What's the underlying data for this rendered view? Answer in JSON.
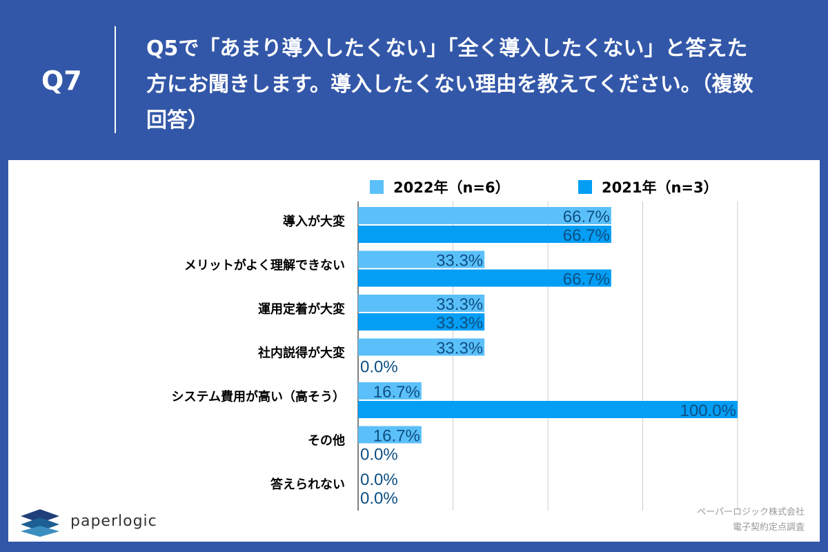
{
  "header": {
    "qnum": "Q7",
    "question": "Q5で「あまり導入したくない」「全く導入したくない」と答えた方にお聞きします。導入したくない理由を教えてください。（複数回答）"
  },
  "footer": {
    "logo": "paperlogic",
    "company": "ペーパーロジック株式会社",
    "survey": "電子契約定点調査"
  },
  "chart_data": {
    "type": "bar",
    "orientation": "horizontal",
    "categories": [
      "導入が大変",
      "メリットがよく理解できない",
      "運用定着が大変",
      "社内説得が大変",
      "システム費用が高い（高そう）",
      "その他",
      "答えられない"
    ],
    "series": [
      {
        "name": "2022年（n=6）",
        "color": "#5bc0fa",
        "values": [
          66.7,
          33.3,
          33.3,
          33.3,
          16.7,
          16.7,
          0.0
        ]
      },
      {
        "name": "2021年（n=3）",
        "color": "#049ef5",
        "values": [
          66.7,
          66.7,
          33.3,
          0.0,
          100.0,
          0.0,
          0.0
        ]
      }
    ],
    "xlim": [
      0,
      100
    ],
    "grid": true,
    "legend": "top",
    "label_color": "#0d4f82",
    "label_suffix": "%"
  }
}
